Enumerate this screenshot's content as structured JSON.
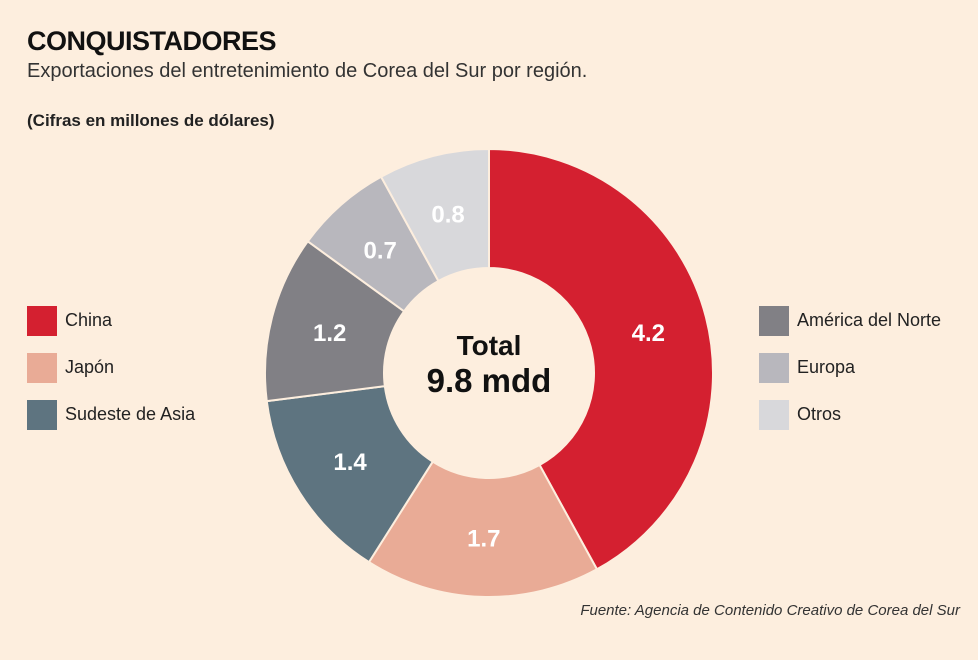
{
  "chart_data": {
    "type": "pie",
    "title": "CONQUISTADORES",
    "subtitle": "Exportaciones del entretenimiento de Corea del Sur por región.",
    "units_note": "(Cifras en millones de dólares)",
    "center_label": "Total",
    "center_value": "9.8 mdd",
    "slices": [
      {
        "name": "China",
        "value": 4.2,
        "label": "4.2",
        "color": "#d42030"
      },
      {
        "name": "Japón",
        "value": 1.7,
        "label": "1.7",
        "color": "#e9ab96"
      },
      {
        "name": "Sudeste de Asia",
        "value": 1.4,
        "label": "1.4",
        "color": "#5e7480"
      },
      {
        "name": "América del Norte",
        "value": 1.2,
        "label": "1.2",
        "color": "#818085"
      },
      {
        "name": "Europa",
        "value": 0.7,
        "label": "0.7",
        "color": "#b8b7bd"
      },
      {
        "name": "Otros",
        "value": 0.8,
        "label": "0.8",
        "color": "#d8d8db"
      }
    ],
    "legend_placement": "left-and-right",
    "source": "Fuente: Agencia de Contenido Creativo de Corea del Sur"
  }
}
